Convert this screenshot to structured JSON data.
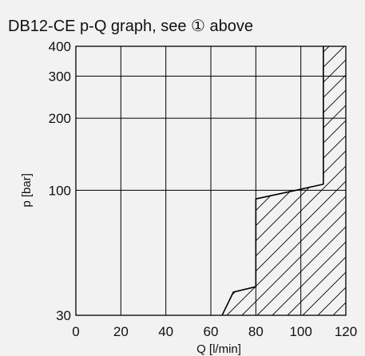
{
  "header": {
    "title": "DB12-CE p-Q graph, see ① above"
  },
  "chart_data": {
    "type": "line",
    "title": "DB12-CE p-Q graph, see ① above",
    "xlabel": "Q [l/min]",
    "ylabel": "p [bar]",
    "xlim": [
      0,
      120
    ],
    "ylim": [
      30,
      400
    ],
    "y_scale": "log",
    "x_ticks": [
      0,
      20,
      40,
      60,
      80,
      100,
      120
    ],
    "y_ticks": [
      30,
      100,
      200,
      300,
      400
    ],
    "grid": true,
    "hatched_region": "area to the right of the characteristic curve",
    "series": [
      {
        "x": [
          65,
          70,
          80,
          80,
          100,
          110,
          110
        ],
        "y": [
          30,
          37.5,
          39.5,
          92,
          101,
          106,
          400
        ]
      }
    ]
  }
}
